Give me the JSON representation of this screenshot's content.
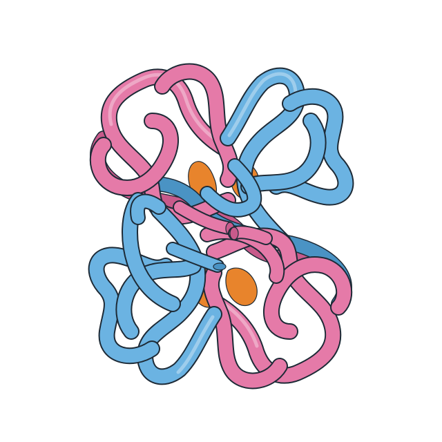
{
  "image": {
    "background_color": "#ffffff"
  },
  "colors": {
    "pink_chain": "#e57aa8",
    "pink_chain_dark": "#c85a8b",
    "blue_chain": "#6bb3e2",
    "blue_chain_dark": "#4a93c4",
    "ligand": "#e8842c",
    "ligand_dark": "#c96a18",
    "outline": "#1d2a36"
  },
  "objects": [
    {
      "name": "pink-chain-top",
      "type": "tube",
      "color_key": "pink_chain"
    },
    {
      "name": "blue-chain-top",
      "type": "tube",
      "color_key": "blue_chain"
    },
    {
      "name": "pink-chain-bottom",
      "type": "tube",
      "color_key": "pink_chain"
    },
    {
      "name": "blue-chain-bottom",
      "type": "tube",
      "color_key": "blue_chain"
    },
    {
      "name": "ligand",
      "type": "blob",
      "color_key": "ligand"
    }
  ]
}
